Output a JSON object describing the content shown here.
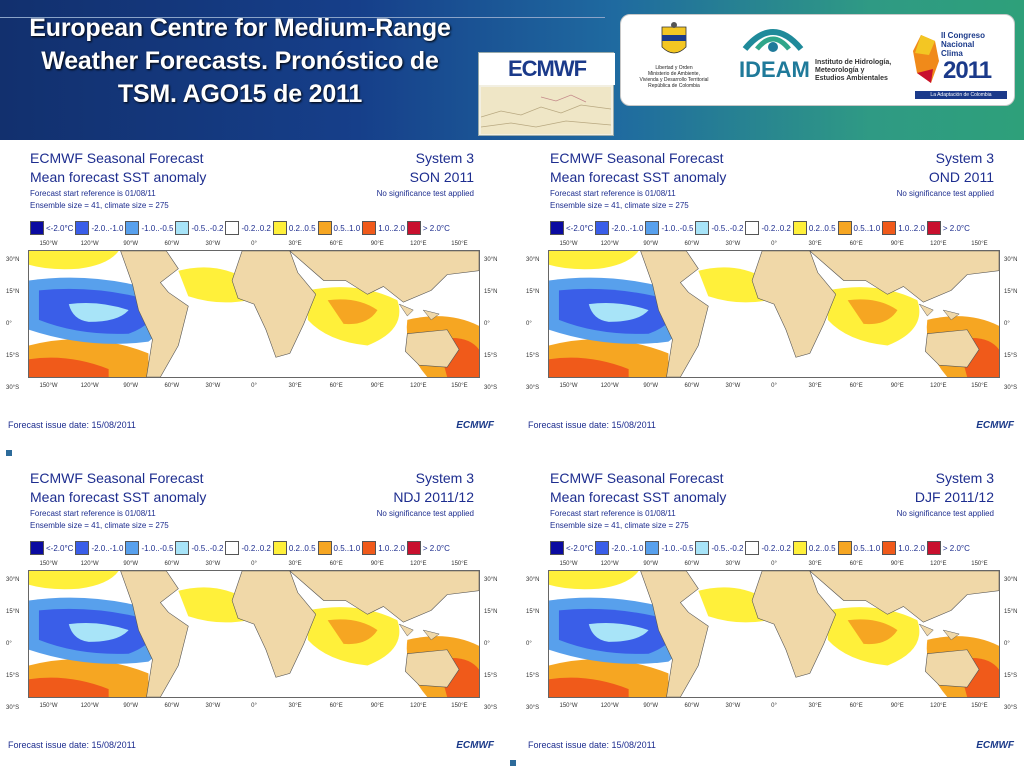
{
  "header": {
    "title_lines": [
      "European Centre for Medium-Range",
      "Weather Forecasts. Pronóstico de",
      "TSM. AGO15 de 2011"
    ],
    "ecmwf_logo": "ECMWF",
    "logo_colombia": "Libertad y Orden\nMinisterio de Ambiente,\nVivienda y Desarrollo Territorial\nRepública de Colombia",
    "ideam": "IDEAM",
    "ideam_sub": "Instituto de Hidrología,\nMeteorología y\nEstudios Ambientales",
    "congreso": "II Congreso\nNacional\nClima",
    "congreso_year": "2011",
    "congreso_band": "La Adaptación de Colombia"
  },
  "common": {
    "title": "ECMWF Seasonal Forecast",
    "subtitle": "Mean forecast SST anomaly",
    "start_ref": "Forecast start reference is 01/08/11",
    "ensemble": "Ensemble size = 41, climate size = 275",
    "system": "System 3",
    "nosig": "No significance test applied",
    "issue": "Forecast issue date: 15/08/2011",
    "logo": "ECMWF",
    "legend": [
      {
        "label": "<-2.0°C",
        "color": "#0a0aa0"
      },
      {
        "label": "-2.0..-1.0",
        "color": "#3a5ee8"
      },
      {
        "label": "-1.0..-0.5",
        "color": "#58a0ec"
      },
      {
        "label": "-0.5..-0.2",
        "color": "#a8e4f8"
      },
      {
        "label": "-0.2..0.2",
        "color": "#ffffff"
      },
      {
        "label": "0.2..0.5",
        "color": "#fff03a"
      },
      {
        "label": "0.5..1.0",
        "color": "#f6a622"
      },
      {
        "label": "1.0..2.0",
        "color": "#f05a1a"
      },
      {
        "label": "> 2.0°C",
        "color": "#c8102e"
      }
    ],
    "lon_labels": [
      "150°W",
      "120°W",
      "90°W",
      "60°W",
      "30°W",
      "0°",
      "30°E",
      "60°E",
      "90°E",
      "120°E",
      "150°E"
    ],
    "lat_labels": [
      "30°N",
      "15°N",
      "0°",
      "15°S",
      "30°S"
    ]
  },
  "panels": [
    {
      "season": "SON 2011"
    },
    {
      "season": "OND 2011"
    },
    {
      "season": "NDJ 2011/12"
    },
    {
      "season": "DJF 2011/12"
    }
  ],
  "colors": {
    "land": "#f0d8a8",
    "header_dark": "#12306e",
    "header_light": "#2ea07a",
    "text": "#1d2d8f"
  }
}
